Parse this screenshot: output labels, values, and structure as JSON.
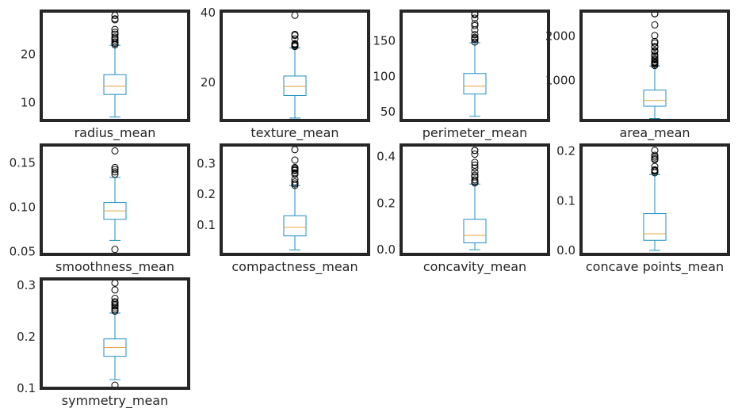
{
  "colors": {
    "background": "#ffffff",
    "frame": "#262626",
    "box": "#1f8fc4",
    "median": "#e8a33c",
    "flier": "#000000"
  },
  "chart_data": [
    {
      "type": "box",
      "xlabel": "radius_mean",
      "ylim": [
        6.3,
        29
      ],
      "yticks": [
        10,
        20
      ],
      "whisker_low": 7.0,
      "q1": 11.7,
      "median": 13.4,
      "q3": 15.8,
      "whisker_high": 21.9,
      "fliers": [
        22.0,
        22.3,
        22.6,
        23.0,
        23.3,
        23.6,
        24.2,
        24.6,
        25.2,
        27.2,
        27.4,
        28.1
      ]
    },
    {
      "type": "box",
      "xlabel": "texture_mean",
      "ylim": [
        9.0,
        40.5
      ],
      "yticks": [
        20,
        40
      ],
      "whisker_low": 9.7,
      "q1": 16.2,
      "median": 18.8,
      "q3": 21.8,
      "whisker_high": 29.9,
      "fliers": [
        30.3,
        30.6,
        30.9,
        31.1,
        32.5,
        33.5,
        33.8,
        39.3
      ]
    },
    {
      "type": "box",
      "xlabel": "perimeter_mean",
      "ylim": [
        38,
        192
      ],
      "yticks": [
        50,
        100,
        150
      ],
      "whisker_low": 43.8,
      "q1": 75.2,
      "median": 86.2,
      "q3": 104.1,
      "whisker_high": 147.3,
      "fliers": [
        148.5,
        152.0,
        153.5,
        155.1,
        158.9,
        165.5,
        171.5,
        174.2,
        182.1,
        186.9,
        188.5
      ]
    },
    {
      "type": "box",
      "xlabel": "area_mean",
      "ylim": [
        100,
        2560
      ],
      "yticks": [
        1000,
        2000
      ],
      "whisker_low": 143.5,
      "q1": 420.3,
      "median": 551.1,
      "q3": 782.7,
      "whisker_high": 1326,
      "fliers": [
        1335,
        1364,
        1384,
        1404,
        1419,
        1461,
        1491,
        1546,
        1574,
        1651,
        1670,
        1747,
        1761,
        1841,
        1878,
        2010,
        2250,
        2499,
        2501
      ]
    },
    {
      "type": "box",
      "xlabel": "smoothness_mean",
      "ylim": [
        0.047,
        0.17
      ],
      "yticks": [
        0.05,
        0.1,
        0.15
      ],
      "whisker_low": 0.0627,
      "q1": 0.0864,
      "median": 0.0959,
      "q3": 0.1053,
      "whisker_high": 0.1335,
      "fliers": [
        0.0526,
        0.1371,
        0.1398,
        0.1425,
        0.1447,
        0.1634
      ]
    },
    {
      "type": "box",
      "xlabel": "compactness_mean",
      "ylim": [
        0.005,
        0.36
      ],
      "yticks": [
        0.1,
        0.2,
        0.3
      ],
      "whisker_low": 0.0194,
      "q1": 0.0649,
      "median": 0.0926,
      "q3": 0.1304,
      "whisker_high": 0.2284,
      "fliers": [
        0.229,
        0.234,
        0.24,
        0.249,
        0.265,
        0.27,
        0.277,
        0.28,
        0.284,
        0.287,
        0.311,
        0.345
      ]
    },
    {
      "type": "box",
      "xlabel": "concavity_mean",
      "ylim": [
        -0.02,
        0.45
      ],
      "yticks": [
        0.0,
        0.2,
        0.4
      ],
      "whisker_low": 0.0,
      "q1": 0.0296,
      "median": 0.0615,
      "q3": 0.1307,
      "whisker_high": 0.2823,
      "fliers": [
        0.2871,
        0.2927,
        0.3003,
        0.313,
        0.3201,
        0.3339,
        0.3514,
        0.3635,
        0.3754,
        0.4108,
        0.4264,
        0.4268
      ]
    },
    {
      "type": "box",
      "xlabel": "concave points_mean",
      "ylim": [
        -0.008,
        0.212
      ],
      "yticks": [
        0.0,
        0.1,
        0.2
      ],
      "whisker_low": 0.0,
      "q1": 0.0203,
      "median": 0.0335,
      "q3": 0.074,
      "whisker_high": 0.1525,
      "fliers": [
        0.1562,
        0.1595,
        0.1604,
        0.162,
        0.1689,
        0.1823,
        0.1845,
        0.1878,
        0.1913,
        0.2012
      ]
    },
    {
      "type": "box",
      "xlabel": "symmetry_mean",
      "ylim": [
        0.1,
        0.312
      ],
      "yticks": [
        0.1,
        0.2,
        0.3
      ],
      "whisker_low": 0.1167,
      "q1": 0.1619,
      "median": 0.1792,
      "q3": 0.1957,
      "whisker_high": 0.2459,
      "fliers": [
        0.106,
        0.2495,
        0.2521,
        0.2556,
        0.2597,
        0.2623,
        0.2655,
        0.2678,
        0.2743,
        0.2906,
        0.304
      ]
    }
  ]
}
